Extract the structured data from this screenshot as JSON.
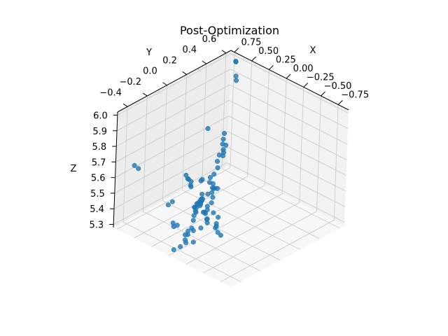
{
  "chart_data": {
    "type": "scatter",
    "projection": "3d",
    "title": "Post-Optimization",
    "xlabel": "X",
    "ylabel": "Y",
    "zlabel": "Z",
    "xlim": [
      -0.9,
      0.8
    ],
    "ylim": [
      -0.5,
      0.65
    ],
    "zlim": [
      5.28,
      6.02
    ],
    "xticks": [
      0.75,
      0.5,
      0.25,
      0.0,
      -0.25,
      -0.5,
      -0.75
    ],
    "xtick_labels": [
      "0.75",
      "0.50",
      "0.25",
      "0.00",
      "−0.25",
      "−0.50",
      "−0.75"
    ],
    "yticks": [
      -0.4,
      -0.2,
      0.0,
      0.2,
      0.4,
      0.6
    ],
    "ytick_labels": [
      "−0.4",
      "−0.2",
      "0.0",
      "0.2",
      "0.4",
      "0.6"
    ],
    "zticks": [
      5.3,
      5.4,
      5.5,
      5.6,
      5.7,
      5.8,
      5.9,
      6.0
    ],
    "ztick_labels": [
      "5.3",
      "5.4",
      "5.5",
      "5.6",
      "5.7",
      "5.8",
      "5.9",
      "6.0"
    ],
    "grid": true,
    "marker_color": "#1f77b4",
    "points": [
      [
        0.7,
        0.63,
        5.98
      ],
      [
        0.71,
        0.64,
        5.97
      ],
      [
        0.62,
        0.58,
        5.92
      ],
      [
        0.6,
        0.57,
        5.9
      ],
      [
        0.36,
        0.12,
        5.8
      ],
      [
        -0.35,
        -0.45,
        5.82
      ],
      [
        -0.3,
        -0.4,
        5.8
      ],
      [
        -0.62,
        -0.5,
        5.85
      ],
      [
        0.55,
        0.43,
        5.62
      ],
      [
        0.52,
        0.4,
        5.6
      ],
      [
        0.5,
        0.38,
        5.58
      ],
      [
        0.48,
        0.4,
        5.57
      ],
      [
        0.46,
        0.36,
        5.56
      ],
      [
        0.44,
        0.35,
        5.55
      ],
      [
        0.42,
        0.33,
        5.54
      ],
      [
        0.5,
        0.35,
        5.52
      ],
      [
        0.47,
        0.31,
        5.5
      ],
      [
        0.42,
        0.28,
        5.48
      ],
      [
        0.36,
        0.2,
        5.48
      ],
      [
        0.3,
        0.12,
        5.5
      ],
      [
        0.28,
        0.1,
        5.48
      ],
      [
        0.3,
        0.15,
        5.45
      ],
      [
        0.25,
        0.12,
        5.44
      ],
      [
        0.22,
        0.14,
        5.44
      ],
      [
        0.3,
        0.1,
        5.4
      ],
      [
        0.1,
        0.0,
        5.52
      ],
      [
        0.08,
        -0.02,
        5.5
      ],
      [
        0.05,
        -0.03,
        5.48
      ],
      [
        -0.1,
        -0.15,
        5.52
      ],
      [
        -0.18,
        -0.25,
        5.55
      ],
      [
        -0.25,
        -0.3,
        5.56
      ],
      [
        -0.35,
        -0.4,
        5.6
      ],
      [
        -0.4,
        -0.45,
        5.63
      ],
      [
        -0.5,
        -0.48,
        5.62
      ],
      [
        -0.42,
        -0.36,
        5.6
      ],
      [
        -0.55,
        -0.42,
        5.58
      ],
      [
        -0.58,
        -0.45,
        5.57
      ],
      [
        -0.7,
        -0.48,
        5.56
      ],
      [
        -0.2,
        -0.15,
        5.45
      ],
      [
        -0.25,
        -0.2,
        5.42
      ],
      [
        -0.3,
        -0.22,
        5.4
      ],
      [
        0.05,
        -0.1,
        5.4
      ],
      [
        0.0,
        -0.12,
        5.38
      ],
      [
        -0.05,
        -0.15,
        5.38
      ],
      [
        -0.03,
        -0.2,
        5.36
      ],
      [
        0.1,
        -0.2,
        5.33
      ],
      [
        0.12,
        -0.25,
        5.3
      ],
      [
        0.15,
        -0.2,
        5.3
      ],
      [
        0.0,
        -0.25,
        5.28
      ],
      [
        0.05,
        -0.3,
        5.3
      ],
      [
        0.2,
        -0.05,
        5.4
      ],
      [
        0.22,
        -0.04,
        5.42
      ],
      [
        0.24,
        -0.02,
        5.4
      ],
      [
        0.26,
        0.0,
        5.38
      ],
      [
        0.28,
        0.02,
        5.4
      ],
      [
        0.3,
        0.04,
        5.42
      ],
      [
        0.32,
        0.05,
        5.38
      ],
      [
        0.34,
        0.07,
        5.36
      ],
      [
        0.36,
        0.08,
        5.35
      ],
      [
        0.38,
        0.1,
        5.35
      ],
      [
        0.4,
        0.12,
        5.34
      ],
      [
        0.33,
        0.0,
        5.32
      ],
      [
        0.32,
        -0.02,
        5.3
      ],
      [
        0.3,
        -0.04,
        5.28
      ],
      [
        0.35,
        0.02,
        5.3
      ],
      [
        0.37,
        0.04,
        5.32
      ],
      [
        0.39,
        0.06,
        5.33
      ],
      [
        0.42,
        0.08,
        5.32
      ],
      [
        0.43,
        0.06,
        5.3
      ],
      [
        0.45,
        0.08,
        5.29
      ],
      [
        0.55,
        0.1,
        5.4
      ],
      [
        0.57,
        0.12,
        5.38
      ],
      [
        0.6,
        0.14,
        5.4
      ],
      [
        0.62,
        0.12,
        5.42
      ],
      [
        0.65,
        0.15,
        5.4
      ],
      [
        0.66,
        0.13,
        5.43
      ],
      [
        0.75,
        -0.3,
        5.6
      ],
      [
        0.78,
        -0.32,
        5.62
      ],
      [
        0.1,
        -0.35,
        5.4
      ],
      [
        0.12,
        -0.38,
        5.42
      ],
      [
        0.15,
        -0.35,
        5.38
      ],
      [
        -0.1,
        -0.4,
        5.35
      ],
      [
        -0.05,
        -0.42,
        5.32
      ],
      [
        0.0,
        -0.45,
        5.3
      ],
      [
        0.25,
        -0.3,
        5.5
      ],
      [
        0.28,
        -0.32,
        5.48
      ],
      [
        -0.2,
        -0.4,
        5.45
      ],
      [
        -0.15,
        -0.42,
        5.42
      ]
    ]
  }
}
